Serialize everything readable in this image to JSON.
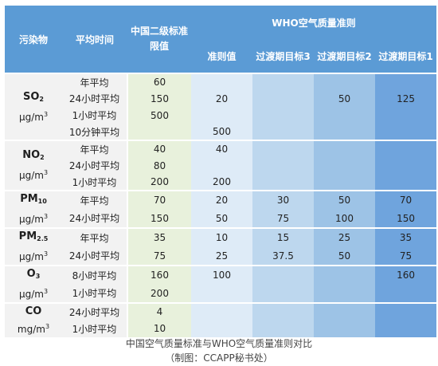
{
  "header": {
    "pollutant": "污染物",
    "period": "平均时间",
    "china_line1": "中国二级标准",
    "china_line2": "限值",
    "who": "WHO空气质量准则",
    "who_guideline": "准则值",
    "it3": "过渡期目标3",
    "it2": "过渡期目标2",
    "it1": "过渡期目标1"
  },
  "pollutants": {
    "so2": {
      "base": "SO",
      "sub": "2",
      "unit_base": "μg/m",
      "unit_sup": "3"
    },
    "no2": {
      "base": "NO",
      "sub": "2",
      "unit_base": "μg/m",
      "unit_sup": "3"
    },
    "pm10": {
      "base": "PM",
      "sub": "10",
      "unit_base": "μg/m",
      "unit_sup": "3"
    },
    "pm25": {
      "base": "PM",
      "sub": "2.5",
      "unit_base": "μg/m",
      "unit_sup": "3"
    },
    "o3": {
      "base": "O",
      "sub": "3",
      "unit_base": "μg/m",
      "unit_sup": "3"
    },
    "co": {
      "base": "CO",
      "unit_base": "mg/m",
      "unit_sup": "3"
    }
  },
  "rows": [
    {
      "period": "年平均",
      "china": "60",
      "who": "",
      "it3": "",
      "it2": "",
      "it1": ""
    },
    {
      "period": "24小时平均",
      "china": "150",
      "who": "20",
      "it3": "",
      "it2": "50",
      "it1": "125"
    },
    {
      "period": "1小时平均",
      "china": "500",
      "who": "",
      "it3": "",
      "it2": "",
      "it1": ""
    },
    {
      "period": "10分钟平均",
      "china": "",
      "who": "500",
      "it3": "",
      "it2": "",
      "it1": ""
    },
    {
      "period": "年平均",
      "china": "40",
      "who": "40",
      "it3": "",
      "it2": "",
      "it1": ""
    },
    {
      "period": "24小时平均",
      "china": "80",
      "who": "",
      "it3": "",
      "it2": "",
      "it1": ""
    },
    {
      "period": "1小时平均",
      "china": "200",
      "who": "200",
      "it3": "",
      "it2": "",
      "it1": ""
    },
    {
      "period": "年平均",
      "china": "70",
      "who": "20",
      "it3": "30",
      "it2": "50",
      "it1": "70"
    },
    {
      "period": "24小时平均",
      "china": "150",
      "who": "50",
      "it3": "75",
      "it2": "100",
      "it1": "150"
    },
    {
      "period": "年平均",
      "china": "35",
      "who": "10",
      "it3": "15",
      "it2": "25",
      "it1": "35"
    },
    {
      "period": "24小时平均",
      "china": "75",
      "who": "25",
      "it3": "37.5",
      "it2": "50",
      "it1": "75"
    },
    {
      "period": "8小时平均",
      "china": "160",
      "who": "100",
      "it3": "",
      "it2": "",
      "it1": "160"
    },
    {
      "period": "1小时平均",
      "china": "200",
      "who": "",
      "it3": "",
      "it2": "",
      "it1": ""
    },
    {
      "period": "24小时平均",
      "china": "4",
      "who": "",
      "it3": "",
      "it2": "",
      "it1": ""
    },
    {
      "period": "1小时平均",
      "china": "10",
      "who": "",
      "it3": "",
      "it2": "",
      "it1": ""
    }
  ],
  "caption": {
    "line1": "中国空气质量标准与WHO空气质量准则对比",
    "line2": "（制图：CCAPP秘书处）"
  },
  "colors": {
    "header": "#5b9bd5",
    "label_bg": "#f2f2f2",
    "china_bg": "#e8f1dc",
    "who_guideline_bg": "#deebf7",
    "it3_bg": "#bdd7ee",
    "it2_bg": "#9dc3e6",
    "it1_bg": "#6fa4dd"
  }
}
